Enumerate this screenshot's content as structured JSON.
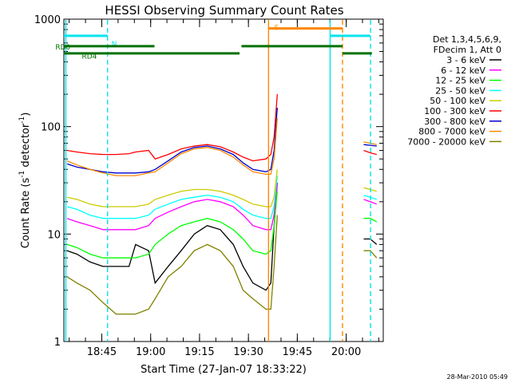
{
  "chart_data": {
    "type": "line",
    "title": "HESSI Observing Summary Count Rates",
    "xlabel": "Start Time (27-Jan-07 18:33:22)",
    "ylabel_main": "Count Rate (s",
    "ylabel_sup1": "-1",
    "ylabel_mid": " detector",
    "ylabel_sup2": "-1",
    "ylabel_end": ")",
    "x_unit": "minutes since start",
    "xlim": [
      0,
      98
    ],
    "ylim": [
      1,
      1000
    ],
    "yscale": "log",
    "x_ticks": [
      {
        "value": 11.63,
        "label": "18:45"
      },
      {
        "value": 26.63,
        "label": "19:00"
      },
      {
        "value": 41.63,
        "label": "19:15"
      },
      {
        "value": 56.63,
        "label": "19:30"
      },
      {
        "value": 71.63,
        "label": "19:45"
      },
      {
        "value": 86.63,
        "label": "20:00"
      }
    ],
    "y_ticks": [
      {
        "value": 1,
        "label": "1"
      },
      {
        "value": 10,
        "label": "10"
      },
      {
        "value": 100,
        "label": "100"
      },
      {
        "value": 1000,
        "label": "1000"
      }
    ],
    "legend_header": [
      "Det 1,3,4,5,6,9,",
      "FDecim 1, Att 0"
    ],
    "legend_placement": "right",
    "series": [
      {
        "name": "3 - 6 keV",
        "color": "#000000",
        "x": [
          1,
          4,
          8,
          12,
          16,
          20,
          22,
          26,
          28,
          32,
          36,
          40,
          44,
          48,
          52,
          55,
          58,
          62,
          63.5,
          64.5,
          65.5,
          90,
          92,
          94,
          96
        ],
        "y": [
          7,
          6.5,
          5.5,
          5,
          5,
          5,
          8,
          7,
          3.5,
          5,
          7,
          10,
          12,
          11,
          8,
          5,
          3.5,
          3,
          3.5,
          12,
          30,
          null,
          9,
          9,
          8
        ]
      },
      {
        "name": "6 - 12 keV",
        "color": "#ff00ff",
        "x": [
          1,
          4,
          8,
          12,
          16,
          20,
          22,
          26,
          28,
          32,
          36,
          40,
          44,
          48,
          52,
          55,
          58,
          62,
          63.5,
          64.5,
          65.5,
          90,
          92,
          94,
          96
        ],
        "y": [
          14,
          13,
          12,
          11,
          11,
          11,
          11,
          12,
          14,
          16,
          18,
          20,
          21,
          20,
          18,
          15,
          12,
          11,
          11,
          15,
          30,
          null,
          21,
          20,
          19
        ]
      },
      {
        "name": "12 - 25 keV",
        "color": "#00ff00",
        "x": [
          1,
          4,
          8,
          12,
          16,
          20,
          22,
          26,
          28,
          32,
          36,
          40,
          44,
          48,
          52,
          55,
          58,
          62,
          63.5,
          64.5,
          65.5,
          90,
          92,
          94,
          96
        ],
        "y": [
          8,
          7.5,
          6.5,
          6,
          6,
          6,
          6,
          6.5,
          8,
          10,
          12,
          13,
          14,
          13,
          11,
          9,
          7,
          6.5,
          7,
          12,
          25,
          null,
          14,
          14,
          13
        ]
      },
      {
        "name": "25 - 50 keV",
        "color": "#00ffff",
        "x": [
          1,
          4,
          8,
          12,
          16,
          20,
          22,
          26,
          28,
          32,
          36,
          40,
          44,
          48,
          52,
          55,
          58,
          62,
          63.5,
          64.5,
          65.5,
          90,
          92,
          94,
          96
        ],
        "y": [
          18,
          17,
          15,
          14,
          14,
          14,
          14,
          15,
          17,
          19,
          21,
          22,
          23,
          22,
          20,
          17,
          15,
          14,
          14,
          18,
          35,
          null,
          23,
          22,
          21
        ]
      },
      {
        "name": "50 - 100 keV",
        "color": "#cccc00",
        "x": [
          1,
          4,
          8,
          12,
          16,
          20,
          22,
          26,
          28,
          32,
          36,
          40,
          44,
          48,
          52,
          55,
          58,
          62,
          63.5,
          64.5,
          65.5,
          90,
          92,
          94,
          96
        ],
        "y": [
          22,
          21,
          19,
          18,
          18,
          18,
          18,
          19,
          21,
          23,
          25,
          26,
          26,
          25,
          23,
          21,
          19,
          18,
          18,
          22,
          40,
          null,
          27,
          26,
          25
        ]
      },
      {
        "name": "100 - 300 keV",
        "color": "#ff0000",
        "x": [
          1,
          4,
          8,
          12,
          16,
          20,
          22,
          26,
          28,
          32,
          36,
          40,
          44,
          48,
          52,
          55,
          58,
          62,
          63.5,
          64.5,
          65.5,
          90,
          92,
          94,
          96
        ],
        "y": [
          60,
          58,
          56,
          55,
          55,
          56,
          58,
          60,
          50,
          55,
          62,
          66,
          68,
          65,
          58,
          52,
          48,
          50,
          55,
          80,
          200,
          null,
          60,
          57,
          55
        ]
      },
      {
        "name": "300 - 800 keV",
        "color": "#0000cc",
        "x": [
          1,
          4,
          8,
          12,
          16,
          20,
          22,
          26,
          28,
          32,
          36,
          40,
          44,
          48,
          52,
          55,
          58,
          62,
          63.5,
          64.5,
          65.5,
          90,
          92,
          94,
          96
        ],
        "y": [
          45,
          42,
          40,
          38,
          37,
          37,
          37,
          38,
          40,
          48,
          58,
          64,
          66,
          62,
          55,
          46,
          40,
          38,
          40,
          60,
          150,
          null,
          68,
          67,
          66
        ]
      },
      {
        "name": "800 - 7000 keV",
        "color": "#ff8800",
        "x": [
          1,
          4,
          8,
          12,
          16,
          20,
          22,
          26,
          28,
          32,
          36,
          40,
          44,
          48,
          52,
          55,
          58,
          62,
          63.5,
          64.5,
          65.5,
          90,
          92,
          94,
          96
        ],
        "y": [
          48,
          44,
          40,
          37,
          35,
          35,
          35,
          37,
          38,
          46,
          56,
          62,
          64,
          60,
          52,
          44,
          38,
          36,
          36,
          50,
          120,
          null,
          72,
          70,
          68
        ]
      },
      {
        "name": "7000 - 20000 keV",
        "color": "#808000",
        "x": [
          1,
          4,
          8,
          12,
          16,
          20,
          22,
          26,
          28,
          32,
          36,
          40,
          44,
          48,
          52,
          55,
          58,
          62,
          63.5,
          64.5,
          65.5,
          90,
          92,
          94,
          96
        ],
        "y": [
          4,
          3.5,
          3,
          2.3,
          1.8,
          1.8,
          1.8,
          2,
          2.5,
          4,
          5,
          7,
          8,
          7,
          5,
          3,
          2.5,
          2,
          2,
          5,
          15,
          null,
          7,
          7,
          6
        ]
      }
    ],
    "flag_bars": [
      {
        "label": "N",
        "label_x": 14.6,
        "label_y": 600,
        "color": "#00e5ee",
        "y": 700,
        "segments": [
          [
            0,
            13.4
          ],
          [
            81.7,
            94
          ]
        ]
      },
      {
        "label": "S",
        "label_x": 64.6,
        "label_y": 850,
        "color": "#ff8800",
        "y": 820,
        "segments": [
          [
            62.7,
            85.5
          ]
        ]
      },
      {
        "label": "RD0",
        "label_x": -2.6,
        "label_y": 560,
        "color": "#007000",
        "y": 560,
        "segments": [
          [
            0,
            27.8
          ],
          [
            54.5,
            85.5
          ]
        ]
      },
      {
        "label": "RD4",
        "label_x": 5.5,
        "label_y": 460,
        "color": "#007000",
        "y": 480,
        "segments": [
          [
            0,
            27.8
          ],
          [
            27.8,
            53.9
          ],
          [
            85.5,
            94.5
          ]
        ]
      }
    ],
    "vertical_markers": [
      {
        "x": 0.6,
        "color": "#00e5ee",
        "style": "solid"
      },
      {
        "x": 13.4,
        "color": "#00e5ee",
        "style": "dashed"
      },
      {
        "x": 62.8,
        "color": "#ff8800",
        "style": "solid"
      },
      {
        "x": 81.7,
        "color": "#00e5ee",
        "style": "solid"
      },
      {
        "x": 85.5,
        "color": "#ff8800",
        "style": "dashed"
      },
      {
        "x": 94.1,
        "color": "#00e5ee",
        "style": "dashed"
      }
    ]
  },
  "footer_timestamp": "28-Mar-2010 05:49"
}
